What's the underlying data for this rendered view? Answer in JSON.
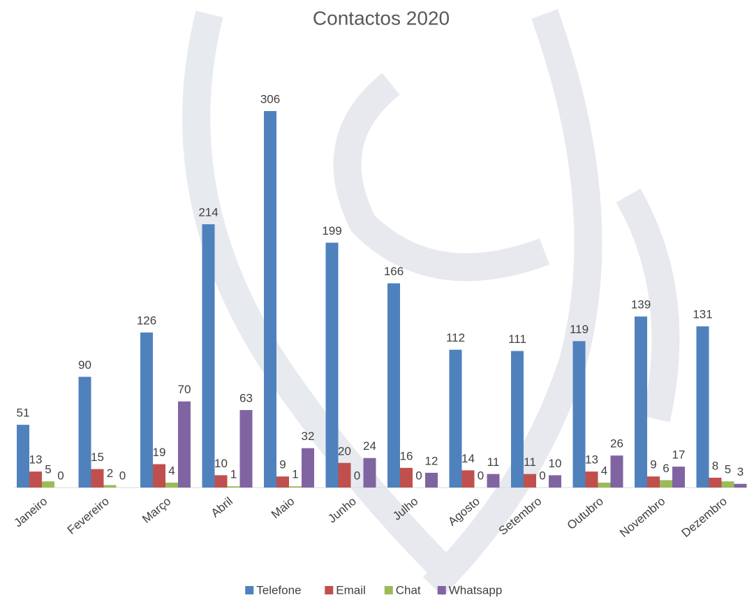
{
  "chart_data": {
    "type": "bar",
    "title": "Contactos 2020",
    "categories": [
      "Janeiro",
      "Fevereiro",
      "Março",
      "Abril",
      "Maio",
      "Junho",
      "Julho",
      "Agosto",
      "Setembro",
      "Outubro",
      "Novembro",
      "Dezembro"
    ],
    "series": [
      {
        "name": "Telefone",
        "color": "#4f81bd",
        "values": [
          51,
          90,
          126,
          214,
          306,
          199,
          166,
          112,
          111,
          119,
          139,
          131
        ]
      },
      {
        "name": "Email",
        "color": "#c0504d",
        "values": [
          13,
          15,
          19,
          10,
          9,
          20,
          16,
          14,
          11,
          13,
          9,
          8
        ]
      },
      {
        "name": "Chat",
        "color": "#9bbb59",
        "values": [
          5,
          2,
          4,
          1,
          1,
          0,
          0,
          0,
          0,
          4,
          6,
          5
        ]
      },
      {
        "name": "Whatsapp",
        "color": "#8064a2",
        "values": [
          0,
          0,
          70,
          63,
          32,
          24,
          12,
          11,
          10,
          26,
          17,
          3
        ]
      }
    ],
    "legend": "bottom"
  }
}
